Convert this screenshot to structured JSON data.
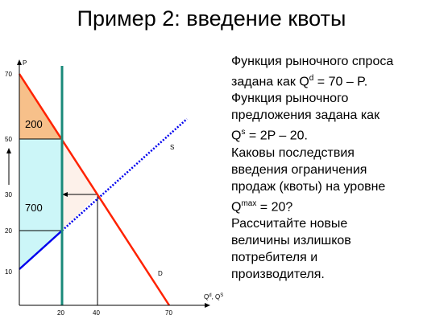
{
  "slide": {
    "title": "Пример 2: введение квоты"
  },
  "problem": {
    "demand_line_1": "Функция рыночного спроса",
    "demand_line_2_pre": "задана как  Q",
    "demand_sup": "d",
    "demand_line_2_post": " = 70 – P.",
    "supply_line_1": "Функция рыночного",
    "supply_line_2": "предложения задана как",
    "supply_line_3_pre": "Q",
    "supply_sup": "s",
    "supply_line_3_post": " = 2P – 20.",
    "question_1": "Каковы последствия",
    "question_2": "введения ограничения",
    "question_3": "продаж (квоты) на уровне",
    "question_4_pre": "Q",
    "question_sup": "max",
    "question_4_post": " = 20?",
    "task_1": "Рассчитайте новые",
    "task_2": "величины  излишков",
    "task_3": "потребителя и",
    "task_4": "производителя."
  },
  "diagram": {
    "y_axis_label": "P",
    "x_axis_label": "Q",
    "x_axis_label_sup": "d",
    "x_axis_label_sep": ", Q",
    "x_axis_label_sup2": "S",
    "demand_label": "D",
    "supply_label": "S",
    "consumer_area_label": "200",
    "producer_area_label": "700",
    "y_ticks": [
      {
        "value": 70,
        "label": "70"
      },
      {
        "value": 50,
        "label": "50"
      },
      {
        "value": 30,
        "label": "30"
      },
      {
        "value": 20,
        "label": "20"
      },
      {
        "value": 10,
        "label": "10"
      }
    ],
    "x_ticks": [
      {
        "value": 20,
        "label": "20"
      },
      {
        "value": 40,
        "label": "40"
      },
      {
        "value": 70,
        "label": "70"
      }
    ],
    "quota": 20,
    "demand": {
      "intercept": 70,
      "slope": -1
    },
    "supply": {
      "intercept": 10,
      "slope": 0.5
    },
    "colors": {
      "demand": "#ff2200",
      "supply": "#0000ee",
      "quota": "#1a8a7a",
      "consumer_fill": "#f7c08a",
      "producer_fill": "#ccf6f8",
      "deadweight_fill": "#fdf1ea"
    }
  }
}
